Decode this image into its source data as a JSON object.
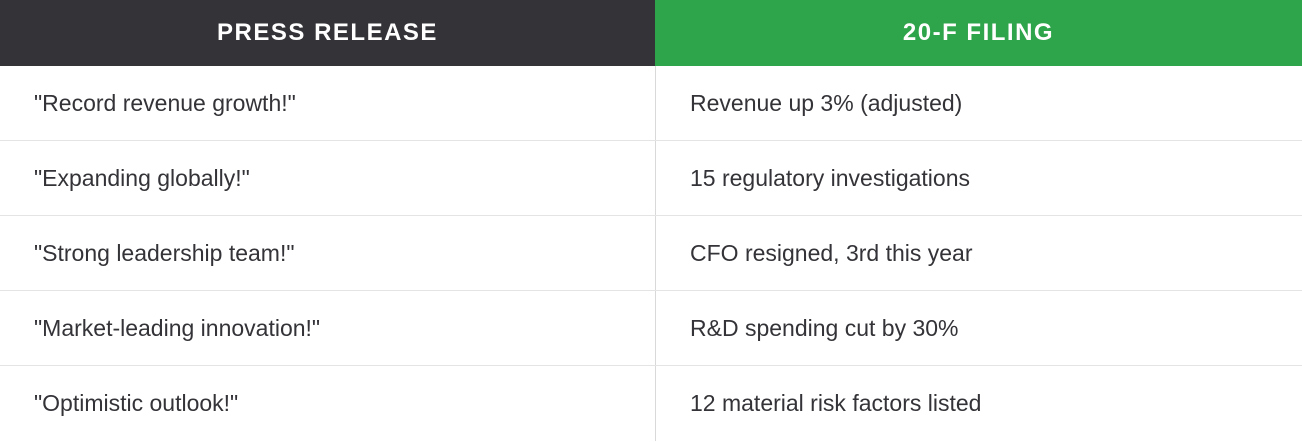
{
  "table": {
    "columns": [
      {
        "label": "PRESS RELEASE",
        "accent_color": "#343338"
      },
      {
        "label": "20-F FILING",
        "accent_color": "#2EA44B"
      }
    ],
    "rows": [
      {
        "press": "\"Record revenue growth!\"",
        "filing": "Revenue up 3% (adjusted)"
      },
      {
        "press": "\"Expanding globally!\"",
        "filing": "15 regulatory investigations"
      },
      {
        "press": "\"Strong leadership team!\"",
        "filing": "CFO resigned, 3rd this year"
      },
      {
        "press": "\"Market-leading innovation!\"",
        "filing": "R&D spending cut by 30%"
      },
      {
        "press": "\"Optimistic outlook!\"",
        "filing": "12 material risk factors listed"
      }
    ]
  }
}
